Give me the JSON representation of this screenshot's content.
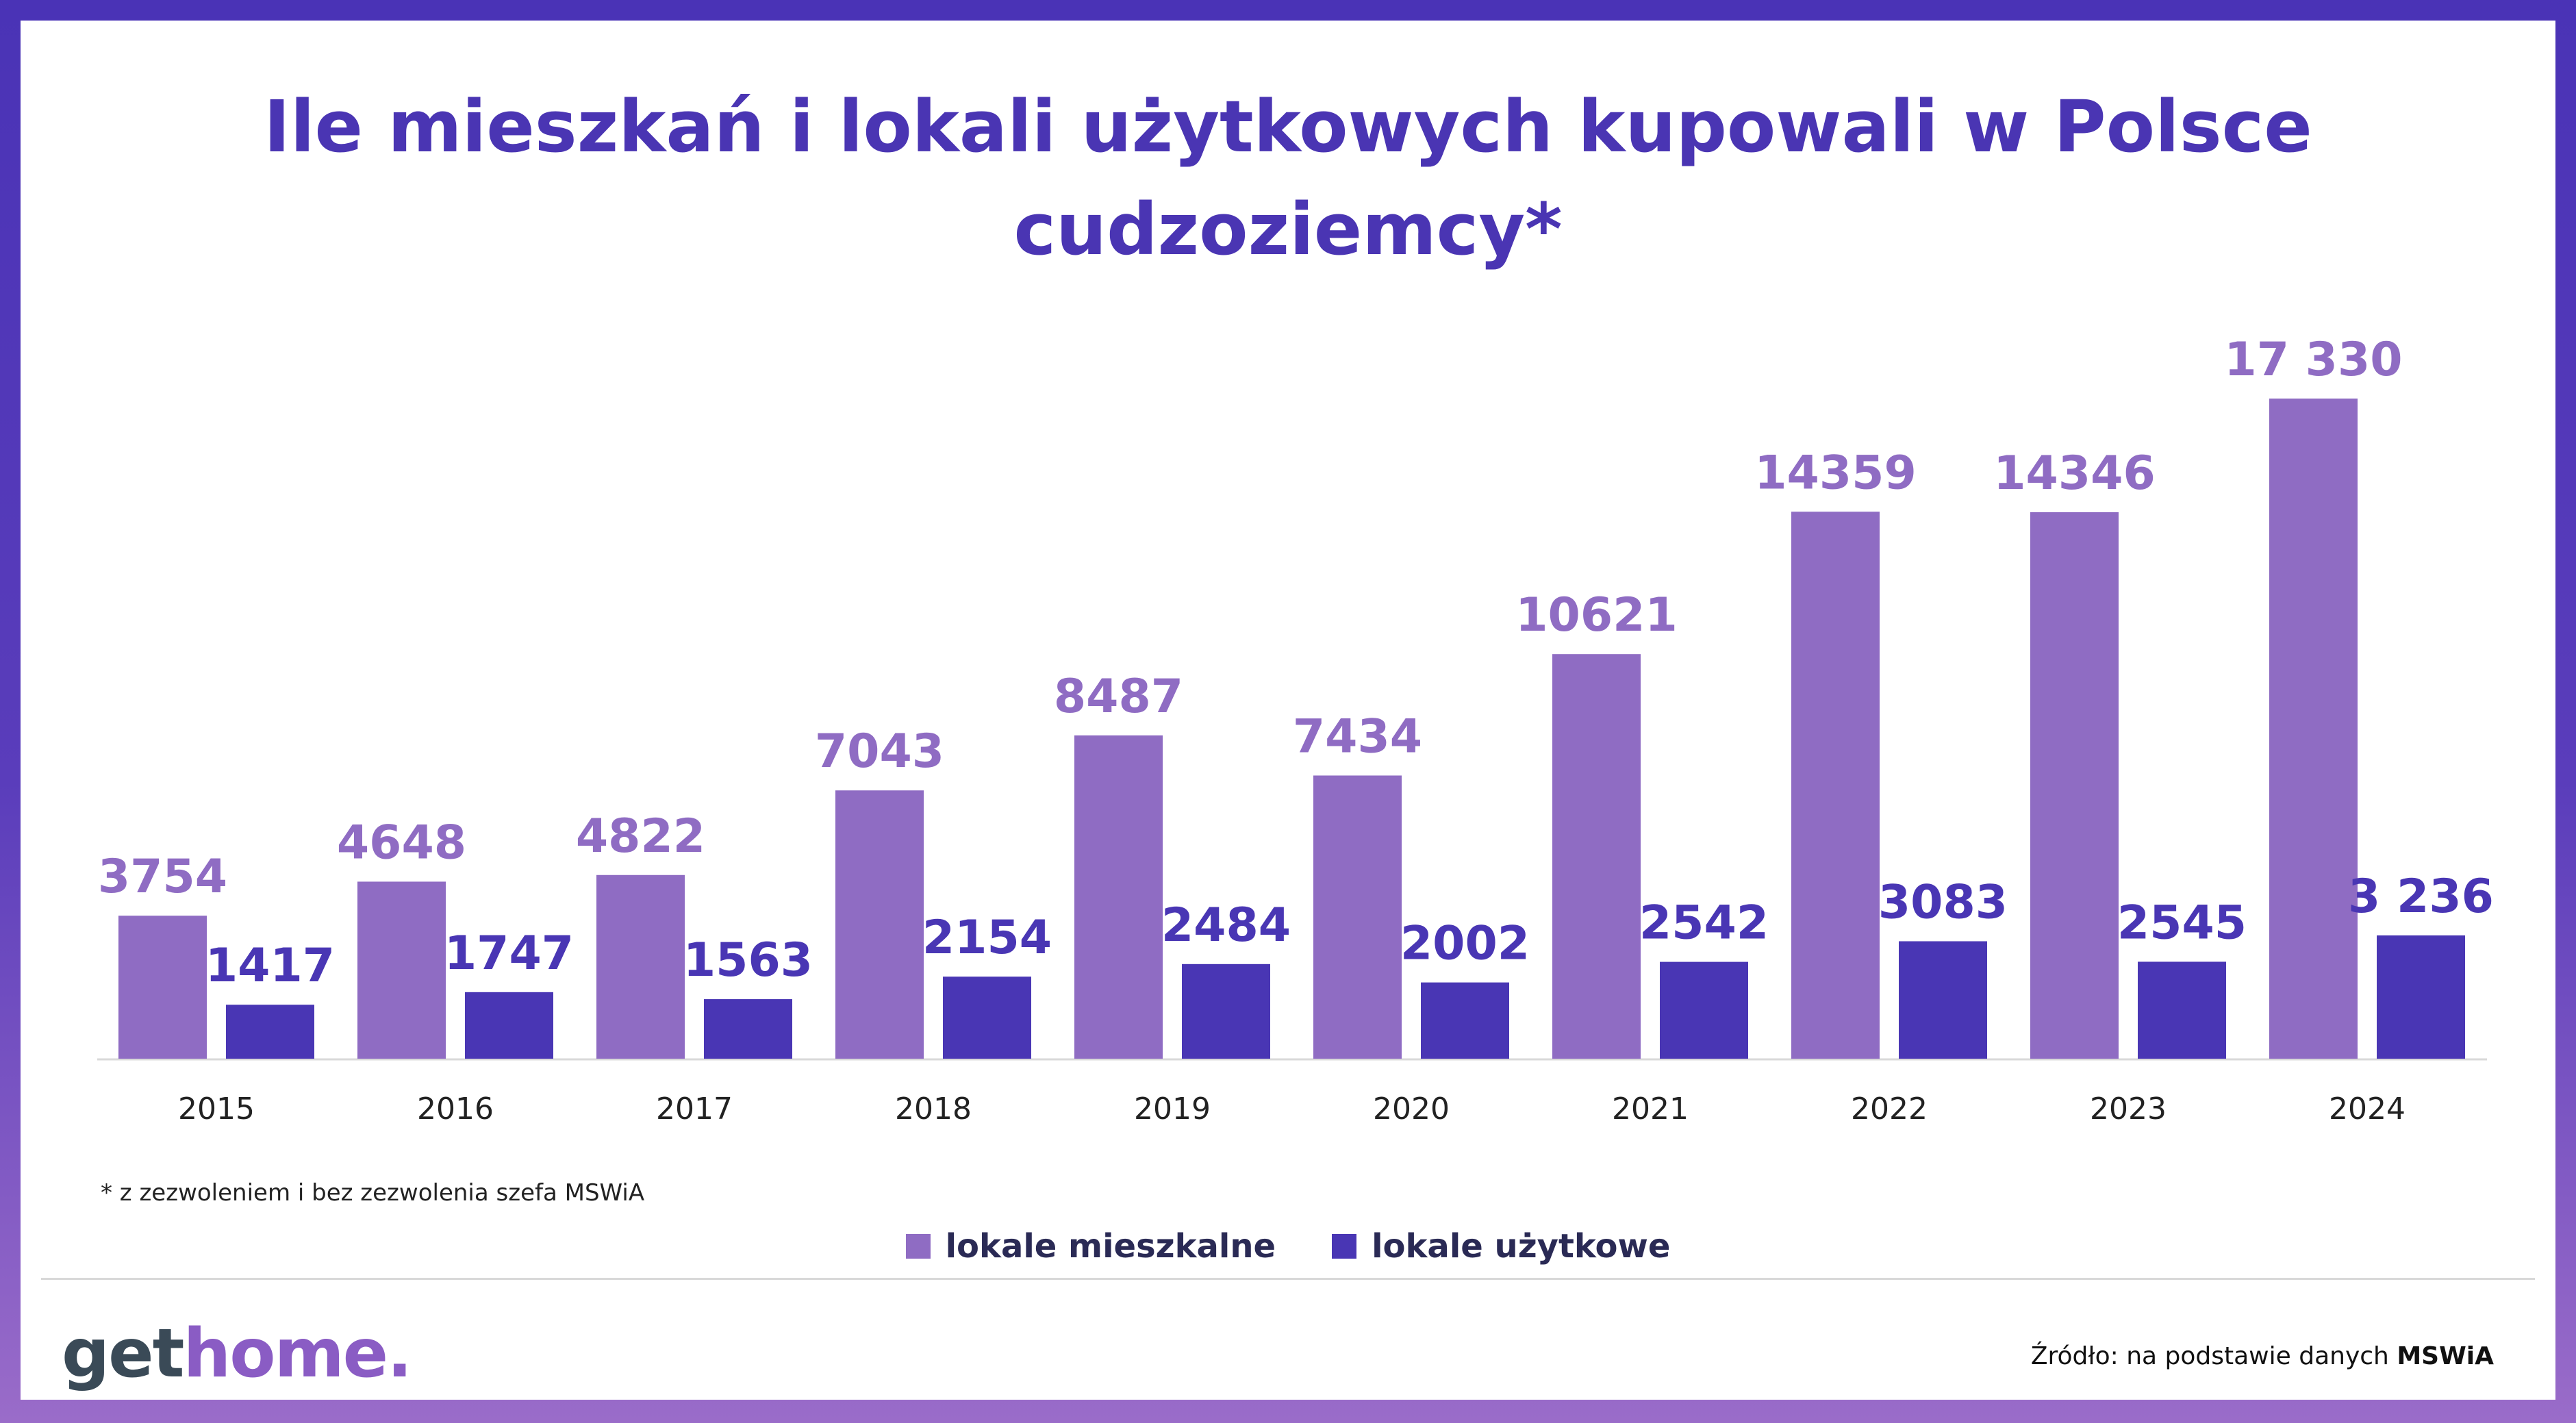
{
  "title": {
    "line1": "Ile mieszkań i lokali użytkowych kupowali w Polsce",
    "line2": "cudzoziemcy*"
  },
  "chart_data": {
    "type": "bar",
    "title": "Ile mieszkań i lokali użytkowych kupowali w Polsce cudzoziemcy*",
    "categories": [
      "2015",
      "2016",
      "2017",
      "2018",
      "2019",
      "2020",
      "2021",
      "2022",
      "2023",
      "2024"
    ],
    "series": [
      {
        "name": "lokale mieszkalne",
        "color": "#8f6cc3",
        "values": [
          3754,
          4648,
          4822,
          7043,
          8487,
          7434,
          10621,
          14359,
          14346,
          17330
        ],
        "labels": [
          "3754",
          "4648",
          "4822",
          "7043",
          "8487",
          "7434",
          "10621",
          "14359",
          "14346",
          "17 330"
        ]
      },
      {
        "name": "lokale użytkowe",
        "color": "#4936b4",
        "values": [
          1417,
          1747,
          1563,
          2154,
          2484,
          2002,
          2542,
          3083,
          2545,
          3236
        ],
        "labels": [
          "1417",
          "1747",
          "1563",
          "2154",
          "2484",
          "2002",
          "2542",
          "3083",
          "2545",
          "3 236"
        ]
      }
    ],
    "xlabel": "",
    "ylabel": "",
    "ylim": [
      0,
      17330
    ],
    "grid": false,
    "legend": "bottom-center"
  },
  "footnote": "* z zezwoleniem i bez zezwolenia szefa MSWiA",
  "legend": {
    "item1": "lokale mieszkalne",
    "item2": "lokale użytkowe"
  },
  "logo": {
    "part1": "get",
    "part2": "home."
  },
  "source": {
    "prefix": "Źródło: na podstawie danych",
    "name": "MSWiA"
  },
  "colors": {
    "frame": "#4a33b6",
    "title": "#4a35b3",
    "series1": "#8f6cc3",
    "series2": "#4936b4"
  }
}
